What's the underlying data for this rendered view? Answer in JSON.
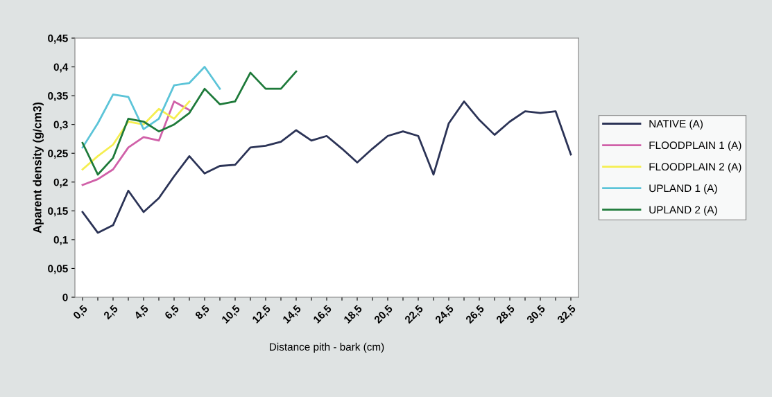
{
  "chart_data": {
    "type": "line",
    "xlabel": "Distance pith - bark (cm)",
    "ylabel": "Aparent density (g/cm3)",
    "categories": [
      "0,5",
      null,
      "2,5",
      null,
      "4,5",
      null,
      "6,5",
      null,
      "8,5",
      null,
      "10,5",
      null,
      "12,5",
      null,
      "14,5",
      null,
      "16,5",
      null,
      "18,5",
      null,
      "20,5",
      null,
      "22,5",
      null,
      "24,5",
      null,
      "26,5",
      null,
      "28,5",
      null,
      "30,5",
      null,
      "32,5"
    ],
    "ylim": [
      0,
      0.45
    ],
    "yticks": [
      {
        "value": 0,
        "label": "0"
      },
      {
        "value": 0.05,
        "label": "0,05"
      },
      {
        "value": 0.1,
        "label": "0,1"
      },
      {
        "value": 0.15,
        "label": "0,15"
      },
      {
        "value": 0.2,
        "label": "0,2"
      },
      {
        "value": 0.25,
        "label": "0,25"
      },
      {
        "value": 0.3,
        "label": "0,3"
      },
      {
        "value": 0.35,
        "label": "0,35"
      },
      {
        "value": 0.4,
        "label": "0,4"
      },
      {
        "value": 0.45,
        "label": "0,45"
      }
    ],
    "legend": "right",
    "grid": false,
    "marker": "none",
    "line_style": "solid",
    "series": [
      {
        "name": "NATIVE (A)",
        "color": "#2b3356",
        "values": [
          0.148,
          0.112,
          0.125,
          0.185,
          0.148,
          0.172,
          0.21,
          0.245,
          0.215,
          0.228,
          0.23,
          0.26,
          0.263,
          0.27,
          0.29,
          0.272,
          0.28,
          0.258,
          0.234,
          0.258,
          0.28,
          0.288,
          0.28,
          0.213,
          0.302,
          0.34,
          0.308,
          0.282,
          0.305,
          0.323,
          0.32,
          0.323,
          0.248
        ]
      },
      {
        "name": "FLOODPLAIN 1 (A)",
        "color": "#d060a8",
        "values": [
          0.195,
          0.205,
          0.222,
          0.26,
          0.278,
          0.272,
          0.34,
          0.325,
          null,
          null,
          null,
          null,
          null,
          null,
          null,
          null,
          null,
          null,
          null,
          null,
          null,
          null,
          null,
          null,
          null,
          null,
          null,
          null,
          null,
          null,
          null,
          null,
          null
        ]
      },
      {
        "name": "FLOODPLAIN 2 (A)",
        "color": "#f5ee50",
        "values": [
          0.222,
          0.245,
          0.265,
          0.305,
          0.3,
          0.327,
          0.31,
          0.34,
          null,
          null,
          null,
          null,
          null,
          null,
          null,
          null,
          null,
          null,
          null,
          null,
          null,
          null,
          null,
          null,
          null,
          null,
          null,
          null,
          null,
          null,
          null,
          null,
          null
        ]
      },
      {
        "name": "UPLAND 1 (A)",
        "color": "#5cc4d8",
        "values": [
          0.26,
          0.302,
          0.352,
          0.348,
          0.292,
          0.31,
          0.368,
          0.372,
          0.4,
          0.362,
          null,
          null,
          null,
          null,
          null,
          null,
          null,
          null,
          null,
          null,
          null,
          null,
          null,
          null,
          null,
          null,
          null,
          null,
          null,
          null,
          null,
          null,
          null
        ]
      },
      {
        "name": "UPLAND 2 (A)",
        "color": "#1e7a3a",
        "values": [
          0.268,
          0.213,
          0.242,
          0.31,
          0.305,
          0.288,
          0.3,
          0.32,
          0.362,
          0.335,
          0.34,
          0.39,
          0.362,
          0.362,
          0.392,
          null,
          null,
          null,
          null,
          null,
          null,
          null,
          null,
          null,
          null,
          null,
          null,
          null,
          null,
          null,
          null,
          null,
          null
        ]
      }
    ]
  }
}
